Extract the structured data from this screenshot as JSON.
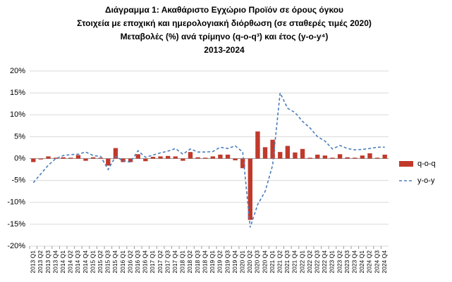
{
  "chart_data": {
    "type": "bar_line",
    "title": "Διάγραμμα 1: Ακαθάριστο Εγχώριο Προϊόν σε όρους όγκου",
    "subtitles": [
      "Στοιχεία με εποχική και ημερολογιακή διόρθωση (σε σταθερές τιμές 2020)",
      "Μεταβολές (%) ανά τρίμηνο (q-o-q³) και έτος (y-o-y⁴)",
      "2013-2024"
    ],
    "categories": [
      "2013 Q1",
      "2013 Q2",
      "2013 Q3",
      "2013 Q4",
      "2014 Q1",
      "2014 Q2",
      "2014 Q3",
      "2014 Q4",
      "2015 Q1",
      "2015 Q2",
      "2015 Q3",
      "2015 Q4",
      "2016 Q1",
      "2016 Q2",
      "2016 Q3",
      "2016 Q4",
      "2017 Q1",
      "2017 Q2",
      "2017 Q3",
      "2017 Q4",
      "2018 Q1",
      "2018 Q2",
      "2018 Q3",
      "2018 Q4",
      "2019 Q1",
      "2019 Q2",
      "2019 Q3",
      "2019 Q4",
      "2020 Q1",
      "2020 Q2",
      "2020 Q3",
      "2020 Q4",
      "2021 Q1",
      "2021 Q2",
      "2021 Q3",
      "2021 Q4",
      "2022 Q1",
      "2022 Q2",
      "2022 Q3",
      "2022 Q4",
      "2023 Q1",
      "2023 Q2",
      "2023 Q3",
      "2023 Q4",
      "2024 Q1",
      "2024 Q2",
      "2024 Q3",
      "2024 Q4"
    ],
    "series": [
      {
        "name": "q-o-q",
        "color": "#c0392b",
        "kind": "bar",
        "values": [
          -0.8,
          -0.2,
          0.5,
          0.2,
          0.3,
          0.2,
          0.8,
          -0.5,
          0.3,
          0.2,
          -1.6,
          2.4,
          -0.8,
          -0.8,
          1.0,
          -0.6,
          0.4,
          0.5,
          0.6,
          0.5,
          -0.5,
          1.5,
          0.3,
          0.2,
          0.5,
          0.9,
          0.9,
          -0.4,
          -2.2,
          -14,
          6.2,
          2.6,
          4.3,
          1.5,
          2.9,
          1.4,
          2.2,
          0.2,
          0.9,
          0.7,
          0.2,
          1.0,
          0.3,
          0.2,
          0.7,
          1.2,
          0.2,
          0.9
        ]
      },
      {
        "name": "y-o-y",
        "color": "#4a7ebb",
        "kind": "line",
        "dashed": true,
        "values": [
          -5.5,
          -3.5,
          -1.5,
          0,
          0.7,
          0.9,
          1.0,
          1.5,
          0.7,
          0.5,
          -2.5,
          0.5,
          -0.5,
          -0.8,
          1.8,
          0.3,
          0.8,
          1.3,
          1.7,
          2.3,
          1.0,
          2.2,
          1.5,
          1.5,
          1.6,
          2.6,
          2.3,
          2.9,
          1.5,
          -15.7,
          -10.5,
          -7.5,
          -1.5,
          15,
          11.5,
          10.5,
          8.5,
          7.0,
          5.0,
          4.0,
          2.2,
          3.0,
          2.3,
          2.0,
          2.1,
          2.3,
          2.6,
          2.6
        ]
      }
    ],
    "ylim": [
      -20,
      20
    ],
    "yticks": [
      {
        "value": -20,
        "label": "-20%"
      },
      {
        "value": -15,
        "label": "-15%"
      },
      {
        "value": -10,
        "label": "-10%"
      },
      {
        "value": -5,
        "label": "-5%"
      },
      {
        "value": 0,
        "label": "0%"
      },
      {
        "value": 5,
        "label": "5%"
      },
      {
        "value": 10,
        "label": "10%"
      },
      {
        "value": 15,
        "label": "15%"
      },
      {
        "value": 20,
        "label": "20%"
      }
    ],
    "grid": true,
    "legend": "right"
  }
}
